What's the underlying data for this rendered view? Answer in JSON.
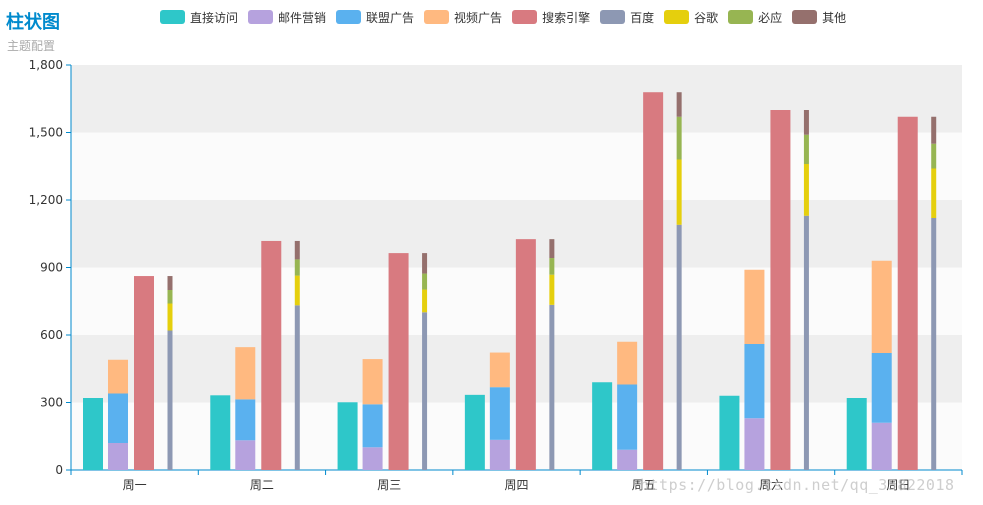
{
  "header": {
    "title": "柱状图",
    "subtitle": "主题配置"
  },
  "watermark": "https://blog.csdn.net/qq_35822018",
  "chart_data": {
    "type": "bar",
    "categories": [
      "周一",
      "周二",
      "周三",
      "周四",
      "周五",
      "周六",
      "周日"
    ],
    "ylim": [
      0,
      1800
    ],
    "yticks": [
      0,
      300,
      600,
      900,
      1200,
      1500,
      1800
    ],
    "ytick_labels": [
      "0",
      "300",
      "600",
      "900",
      "1,200",
      "1,500",
      "1,800"
    ],
    "grid": "alternating horizontal bands",
    "legend_position": "top",
    "series": [
      {
        "name": "直接访问",
        "color": "#2ec7c9",
        "stack": "direct",
        "values": [
          320,
          332,
          301,
          334,
          390,
          330,
          320
        ]
      },
      {
        "name": "邮件营销",
        "color": "#b6a2de",
        "stack": "ad",
        "values": [
          120,
          132,
          101,
          134,
          90,
          230,
          210
        ]
      },
      {
        "name": "联盟广告",
        "color": "#5ab1ef",
        "stack": "ad",
        "values": [
          220,
          182,
          191,
          234,
          290,
          330,
          310
        ]
      },
      {
        "name": "视频广告",
        "color": "#ffb980",
        "stack": "ad",
        "values": [
          150,
          232,
          201,
          154,
          190,
          330,
          410
        ]
      },
      {
        "name": "搜索引擎",
        "color": "#d87a80",
        "stack": "search",
        "values": [
          862,
          1018,
          964,
          1026,
          1679,
          1600,
          1570
        ]
      },
      {
        "name": "百度",
        "color": "#8d98b3",
        "stack": "engine",
        "values": [
          620,
          732,
          701,
          734,
          1090,
          1130,
          1120
        ]
      },
      {
        "name": "谷歌",
        "color": "#e5cf0d",
        "stack": "engine",
        "values": [
          120,
          132,
          101,
          134,
          290,
          230,
          220
        ]
      },
      {
        "name": "必应",
        "color": "#97b552",
        "stack": "engine",
        "values": [
          60,
          72,
          71,
          74,
          190,
          130,
          110
        ]
      },
      {
        "name": "其他",
        "color": "#95706d",
        "stack": "engine",
        "values": [
          62,
          82,
          91,
          84,
          109,
          110,
          120
        ]
      }
    ]
  }
}
